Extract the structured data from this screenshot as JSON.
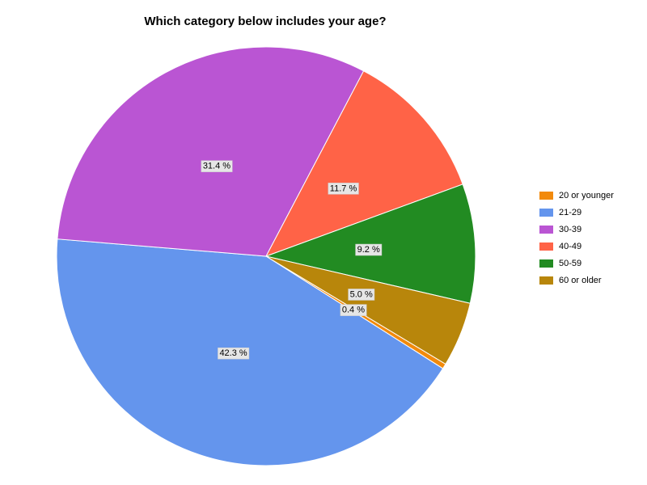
{
  "chart_data": {
    "type": "pie",
    "title": "Which category below includes your age?",
    "categories": [
      "20 or younger",
      "21-29",
      "30-39",
      "40-49",
      "50-59",
      "60 or older"
    ],
    "values": [
      0.4,
      42.3,
      31.4,
      11.7,
      9.2,
      5.0
    ],
    "value_labels": [
      "0.4 %",
      "42.3 %",
      "31.4 %",
      "11.7 %",
      "9.2 %",
      "5.0 %"
    ],
    "colors": [
      "#f28a0c",
      "#6495ed",
      "#ba55d3",
      "#ff6347",
      "#228b22",
      "#b8860b"
    ],
    "legend": "right"
  }
}
